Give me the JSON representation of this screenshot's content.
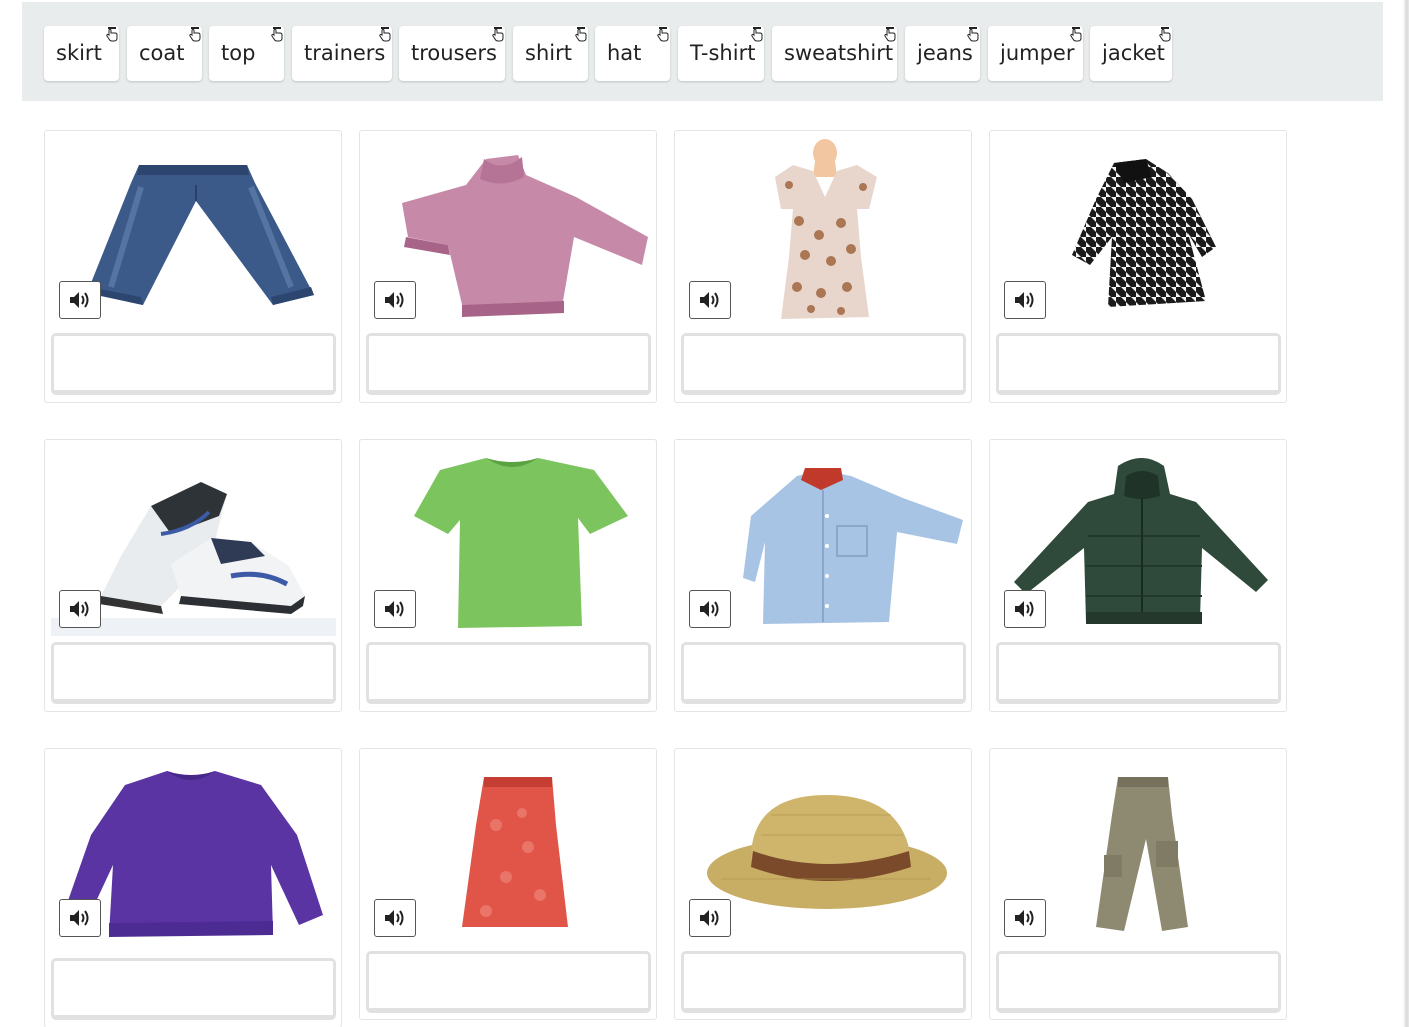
{
  "word_bank": {
    "chips": [
      {
        "label": "skirt"
      },
      {
        "label": "coat"
      },
      {
        "label": "top"
      },
      {
        "label": "trainers"
      },
      {
        "label": "trousers"
      },
      {
        "label": "shirt"
      },
      {
        "label": "hat"
      },
      {
        "label": "T-shirt"
      },
      {
        "label": "sweatshirt"
      },
      {
        "label": "jeans"
      },
      {
        "label": "jumper"
      },
      {
        "label": "jacket"
      }
    ]
  },
  "cards": [
    {
      "image": "jeans-picture",
      "answer": ""
    },
    {
      "image": "pink-jumper-picture",
      "answer": ""
    },
    {
      "image": "patterned-top-picture",
      "answer": ""
    },
    {
      "image": "houndstooth-coat-picture",
      "answer": ""
    },
    {
      "image": "trainers-picture",
      "answer": ""
    },
    {
      "image": "green-tshirt-picture",
      "answer": ""
    },
    {
      "image": "blue-shirt-picture",
      "answer": ""
    },
    {
      "image": "green-jacket-picture",
      "answer": ""
    },
    {
      "image": "purple-sweatshirt-picture",
      "answer": ""
    },
    {
      "image": "red-skirt-picture",
      "answer": ""
    },
    {
      "image": "straw-hat-picture",
      "answer": ""
    },
    {
      "image": "khaki-trousers-picture",
      "answer": ""
    }
  ],
  "icons": {
    "chip": "hand-pointer-icon",
    "audio": "speaker-icon"
  },
  "colors": {
    "word_bank_bg": "#e9ecec",
    "drop_border": "#e1e1e1"
  }
}
